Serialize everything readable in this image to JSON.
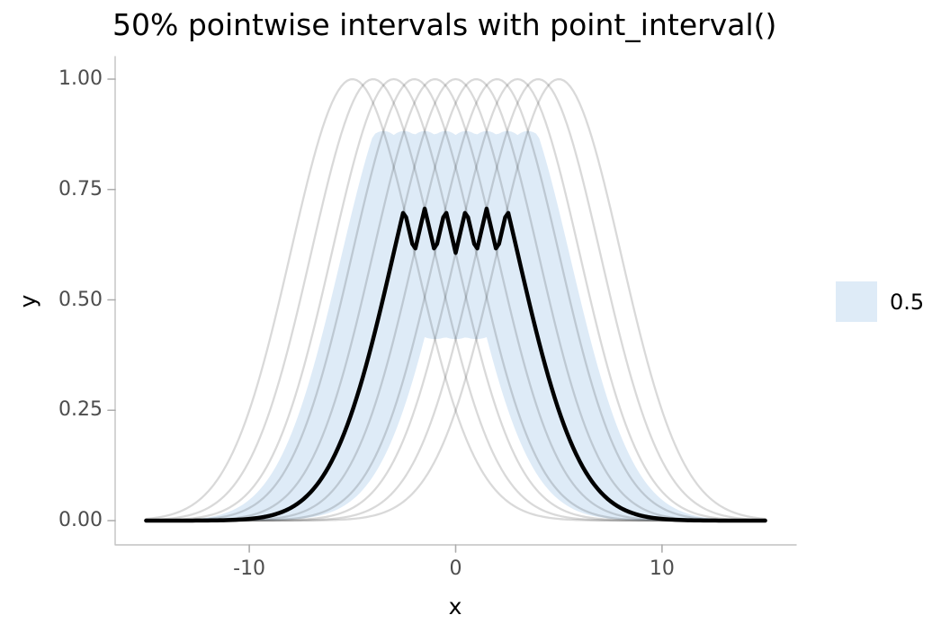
{
  "title": "50% pointwise intervals with point_interval()",
  "x_axis": {
    "label": "x",
    "ticks": [
      {
        "value": -10,
        "label": "-10"
      },
      {
        "value": 0,
        "label": "0"
      },
      {
        "value": 10,
        "label": "10"
      }
    ]
  },
  "y_axis": {
    "label": "y",
    "ticks": [
      {
        "value": 0.0,
        "label": "0.00"
      },
      {
        "value": 0.25,
        "label": "0.25"
      },
      {
        "value": 0.5,
        "label": "0.50"
      },
      {
        "value": 0.75,
        "label": "0.75"
      },
      {
        "value": 1.0,
        "label": "1.00"
      }
    ]
  },
  "legend": {
    "position": "right",
    "items": [
      {
        "label": "0.5",
        "color": "#DEEBF7"
      }
    ]
  },
  "colors": {
    "background": "#FFFFFF",
    "ribbon_fill": "#DEEBF7",
    "curve_stroke": "rgba(0,0,0,0.15)",
    "median_stroke": "#000000",
    "axis_line": "#C2C2C2",
    "tick_mark": "#ACACAC",
    "tick_label": "#4D4D4D",
    "axis_title": "#000000",
    "title_color": "#000000"
  },
  "chart_data": {
    "type": "line",
    "title": "50% pointwise intervals with point_interval()",
    "xlabel": "x",
    "ylabel": "y",
    "xlim": [
      -16.5,
      16.5
    ],
    "ylim": [
      0,
      1
    ],
    "x_ticks": [
      -10,
      0,
      10
    ],
    "y_ticks": [
      0,
      0.25,
      0.5,
      0.75,
      1
    ],
    "grid": false,
    "legend_position": "right",
    "curves": {
      "count": 11,
      "means": [
        -5,
        -4,
        -3,
        -2,
        -1,
        0,
        1,
        2,
        3,
        4,
        5
      ],
      "formula": "y = exp(-(x - mean)^2 / 18)",
      "denominator": 18,
      "x_range": [
        -15,
        15
      ],
      "n_points": 201,
      "peak_y": 1.0
    },
    "summary": {
      "point": "median",
      "interval": "pointwise quantile interval",
      "width": 0.5,
      "lower_p": 0.25,
      "upper_p": 0.75,
      "median_at_x0": 0.607,
      "median_zigzag_peak": 0.707,
      "interval_at_x0": [
        0.411,
        0.873
      ]
    }
  }
}
